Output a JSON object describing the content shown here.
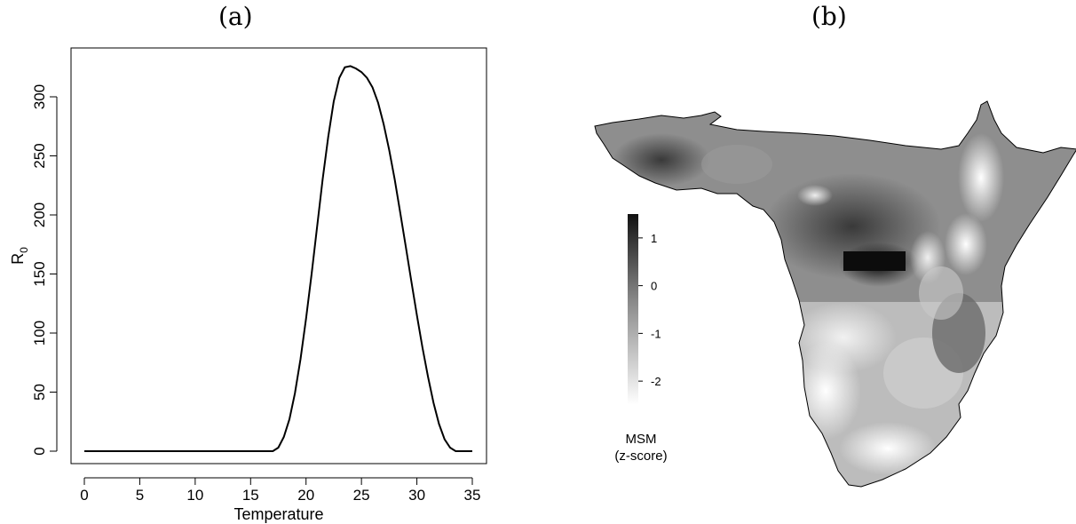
{
  "panels": {
    "a_label": "(a)",
    "b_label": "(b)"
  },
  "chart_data": [
    {
      "type": "line",
      "panel": "(a)",
      "title": "",
      "xlabel": "Temperature",
      "ylabel_main": "R",
      "ylabel_sub": "0",
      "xlim": [
        0,
        35
      ],
      "ylim": [
        0,
        320
      ],
      "xticks": [
        0,
        5,
        10,
        15,
        20,
        25,
        30,
        35
      ],
      "yticks": [
        0,
        50,
        100,
        150,
        200,
        250,
        300
      ],
      "grid": false,
      "series": [
        {
          "x": [
            0,
            5,
            10,
            15,
            16,
            17,
            17.5,
            18,
            18.5,
            19,
            19.5,
            20,
            20.5,
            21,
            21.5,
            22,
            22.5,
            23,
            23.5,
            24,
            24.5,
            25,
            25.5,
            26,
            26.5,
            27,
            27.5,
            28,
            28.5,
            29,
            29.5,
            30,
            30.5,
            31,
            31.5,
            32,
            32.5,
            33,
            33.5,
            34,
            35
          ],
          "y": [
            0,
            0,
            0,
            0,
            0,
            0,
            3,
            12,
            27,
            49,
            78,
            112,
            150,
            190,
            230,
            266,
            296,
            316,
            325,
            326,
            324,
            321,
            316,
            308,
            295,
            277,
            255,
            230,
            202,
            173,
            144,
            115,
            88,
            63,
            41,
            23,
            10,
            3,
            0,
            0,
            0
          ]
        }
      ]
    },
    {
      "type": "heatmap",
      "panel": "(b)",
      "colorbar_title_line1": "MSM",
      "colorbar_title_line2": "(z-score)",
      "colorbar_ticks": [
        "1",
        "0",
        "-1",
        "-2"
      ],
      "colorbar_tick_values": [
        1,
        0,
        -1,
        -2
      ],
      "colorbar_range": [
        -2.5,
        1.5
      ],
      "colormap": [
        "#ffffff",
        "#000000"
      ]
    }
  ]
}
